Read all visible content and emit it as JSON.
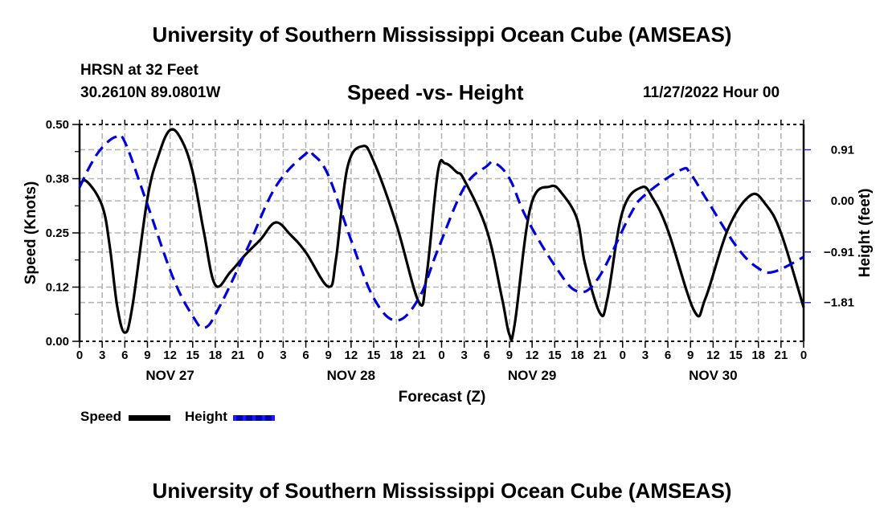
{
  "header": {
    "main_title": "University of Southern Mississippi Ocean Cube (AMSEAS)",
    "station": "HRSN at 32 Feet",
    "coordinates": "30.2610N  89.0801W",
    "chart_title": "Speed -vs- Height",
    "run_time": "11/27/2022 Hour 00"
  },
  "footer": {
    "title": "University of Southern Mississippi Ocean Cube (AMSEAS)"
  },
  "legend": {
    "items": [
      {
        "label": "Speed",
        "color": "#000000",
        "style": "solid"
      },
      {
        "label": "Height",
        "color": "#0000dd",
        "style": "dashed"
      }
    ]
  },
  "chart_data": {
    "type": "line",
    "title": "Speed -vs- Height",
    "xlabel": "Forecast (Z)",
    "ylabel": "Speed (Knots)",
    "y2label": "Height (feet)",
    "x_unit": "forecast hour",
    "xlim": [
      0,
      96
    ],
    "ylim": [
      0,
      0.5
    ],
    "y2lim": [
      -2.5,
      1.36
    ],
    "grid": true,
    "legend_position": "bottom-left",
    "x_tick_step_hours": 3,
    "x_tick_labels": [
      "0",
      "3",
      "6",
      "9",
      "12",
      "15",
      "18",
      "21",
      "0",
      "3",
      "6",
      "9",
      "12",
      "15",
      "18",
      "21",
      "0",
      "3",
      "6",
      "9",
      "12",
      "15",
      "18",
      "21",
      "0",
      "3",
      "6",
      "9",
      "12",
      "15",
      "18",
      "21",
      "0"
    ],
    "day_labels": [
      {
        "label": "NOV 27",
        "center_hour": 12
      },
      {
        "label": "NOV 28",
        "center_hour": 36
      },
      {
        "label": "NOV 29",
        "center_hour": 60
      },
      {
        "label": "NOV 30",
        "center_hour": 84
      }
    ],
    "y_ticks": [
      {
        "value": 0.0,
        "label": "0.00"
      },
      {
        "value": 0.125,
        "label": "0.12"
      },
      {
        "value": 0.25,
        "label": "0.25"
      },
      {
        "value": 0.375,
        "label": "0.38"
      },
      {
        "value": 0.5,
        "label": "0.50"
      }
    ],
    "y2_ticks": [
      {
        "value": 0.91,
        "label": "0.91"
      },
      {
        "value": 0.0,
        "label": "0.00"
      },
      {
        "value": -0.91,
        "label": "−0.91"
      },
      {
        "value": -1.81,
        "label": "−1.81"
      }
    ],
    "series": [
      {
        "name": "Speed",
        "axis": "left",
        "color": "#000000",
        "style": "solid",
        "points": [
          [
            0,
            0.362
          ],
          [
            1,
            0.368
          ],
          [
            3,
            0.312
          ],
          [
            4,
            0.22
          ],
          [
            5,
            0.08
          ],
          [
            6,
            0.02
          ],
          [
            7,
            0.08
          ],
          [
            9,
            0.33
          ],
          [
            10.5,
            0.43
          ],
          [
            12,
            0.487
          ],
          [
            13.5,
            0.465
          ],
          [
            15,
            0.39
          ],
          [
            16.5,
            0.25
          ],
          [
            18,
            0.13
          ],
          [
            20,
            0.16
          ],
          [
            22,
            0.2
          ],
          [
            24,
            0.235
          ],
          [
            26,
            0.274
          ],
          [
            28,
            0.245
          ],
          [
            30,
            0.205
          ],
          [
            33,
            0.126
          ],
          [
            34,
            0.19
          ],
          [
            35.5,
            0.4
          ],
          [
            37.5,
            0.45
          ],
          [
            39,
            0.415
          ],
          [
            42,
            0.27
          ],
          [
            45,
            0.09
          ],
          [
            46,
            0.15
          ],
          [
            47.5,
            0.39
          ],
          [
            48.5,
            0.41
          ],
          [
            50,
            0.39
          ],
          [
            51,
            0.372
          ],
          [
            54,
            0.256
          ],
          [
            56,
            0.1
          ],
          [
            57,
            0.015
          ],
          [
            57.7,
            0.04
          ],
          [
            59.8,
            0.31
          ],
          [
            62.4,
            0.357
          ],
          [
            64,
            0.34
          ],
          [
            66,
            0.28
          ],
          [
            67,
            0.18
          ],
          [
            69,
            0.065
          ],
          [
            70,
            0.1
          ],
          [
            72,
            0.3
          ],
          [
            74.5,
            0.355
          ],
          [
            76,
            0.33
          ],
          [
            78,
            0.256
          ],
          [
            81.5,
            0.07
          ],
          [
            83,
            0.1
          ],
          [
            86,
            0.26
          ],
          [
            89,
            0.337
          ],
          [
            91,
            0.315
          ],
          [
            93,
            0.25
          ],
          [
            96,
            0.078
          ]
        ]
      },
      {
        "name": "Height",
        "axis": "right",
        "color": "#0000dd",
        "style": "dashed",
        "points": [
          [
            0,
            0.24
          ],
          [
            1.5,
            0.65
          ],
          [
            3,
            0.95
          ],
          [
            4.8,
            1.14
          ],
          [
            6,
            1.05
          ],
          [
            8.8,
            0.01
          ],
          [
            12.4,
            -1.37
          ],
          [
            15,
            -2.05
          ],
          [
            16.6,
            -2.26
          ],
          [
            18.5,
            -1.9
          ],
          [
            22.3,
            -0.83
          ],
          [
            26,
            0.25
          ],
          [
            30,
            0.84
          ],
          [
            31,
            0.82
          ],
          [
            33,
            0.45
          ],
          [
            36,
            -0.7
          ],
          [
            39,
            -1.73
          ],
          [
            42,
            -2.13
          ],
          [
            45,
            -1.73
          ],
          [
            47.5,
            -0.87
          ],
          [
            51,
            0.24
          ],
          [
            54,
            0.62
          ],
          [
            55,
            0.68
          ],
          [
            57,
            0.4
          ],
          [
            59.2,
            -0.29
          ],
          [
            63,
            -1.15
          ],
          [
            66,
            -1.61
          ],
          [
            68.8,
            -1.37
          ],
          [
            73,
            -0.25
          ],
          [
            75,
            0.11
          ],
          [
            79.7,
            0.55
          ],
          [
            81,
            0.48
          ],
          [
            83.2,
            0.01
          ],
          [
            87.2,
            -0.83
          ],
          [
            90,
            -1.2
          ],
          [
            92.1,
            -1.26
          ],
          [
            96,
            -1.0
          ]
        ]
      }
    ]
  }
}
